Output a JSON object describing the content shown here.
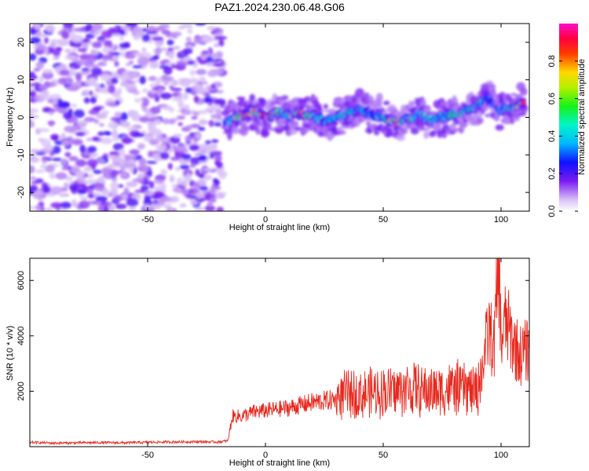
{
  "figure": {
    "title": "PAZ1.2024.230.06.48.G06"
  },
  "chart_data": [
    {
      "type": "heatmap",
      "title": "PAZ1.2024.230.06.48.G06",
      "xlabel": "Height of straight line (km)",
      "ylabel": "Frequency (Hz)",
      "xlim": [
        -100,
        112
      ],
      "ylim": [
        -25,
        25
      ],
      "xticks": [
        -50,
        0,
        50,
        100
      ],
      "yticks": [
        -20,
        -10,
        0,
        10,
        20
      ],
      "colorbar": {
        "label": "Normalized spectral amplitude",
        "range": [
          0.0,
          1.0
        ],
        "ticks": [
          "0.0",
          "0.2",
          "0.4",
          "0.6",
          "0.8"
        ],
        "colormap": "rainbow (white-violet-blue-cyan-green-yellow-red-magenta)"
      },
      "ridge": {
        "description": "dominant frequency track, strong spectral amplitude",
        "x": [
          -17,
          -10,
          -5,
          0,
          5,
          10,
          15,
          20,
          25,
          30,
          35,
          40,
          45,
          50,
          55,
          60,
          65,
          70,
          75,
          80,
          85,
          90,
          95,
          100,
          105,
          110
        ],
        "y": [
          -1.5,
          0.5,
          1.5,
          0,
          1.5,
          0.5,
          1.0,
          0.5,
          -1.0,
          0,
          1.0,
          2.0,
          1.0,
          0.0,
          -1.5,
          -0.5,
          1.0,
          -0.5,
          0,
          1.0,
          1.5,
          3.0,
          5.0,
          2.0,
          2.5,
          4.0
        ],
        "peak_amplitude": [
          0.3,
          0.9,
          0.7,
          0.9,
          0.6,
          0.5,
          0.9,
          0.6,
          0.4,
          0.4,
          0.5,
          0.4,
          0.3,
          0.5,
          0.8,
          0.5,
          0.4,
          0.5,
          0.4,
          0.6,
          0.5,
          0.5,
          0.3,
          0.4,
          0.5,
          0.9
        ]
      },
      "noise_region": {
        "x_range": [
          -100,
          -18
        ],
        "y_range": [
          -25,
          25
        ],
        "amplitude": [
          0.02,
          0.25
        ]
      }
    },
    {
      "type": "line",
      "xlabel": "Height of straight line (km)",
      "ylabel": "SNR (10 * v/v)",
      "xlim": [
        -100,
        112
      ],
      "ylim": [
        0,
        6800
      ],
      "xticks": [
        -50,
        0,
        50,
        100
      ],
      "yticks": [
        2000,
        4000,
        6000
      ],
      "series": [
        {
          "color": "#e8281e",
          "x": [
            -100,
            -90,
            -80,
            -70,
            -60,
            -50,
            -40,
            -30,
            -20,
            -16,
            -14,
            -10,
            -5,
            0,
            5,
            10,
            15,
            20,
            25,
            30,
            35,
            40,
            45,
            50,
            55,
            60,
            65,
            70,
            75,
            80,
            85,
            90,
            93,
            95,
            97,
            99,
            100,
            102,
            105,
            108,
            112
          ],
          "y": [
            150,
            120,
            130,
            140,
            130,
            150,
            160,
            170,
            160,
            200,
            1100,
            1100,
            1250,
            1300,
            1350,
            1400,
            1500,
            1600,
            1650,
            1700,
            1800,
            1800,
            1850,
            1900,
            1900,
            2000,
            1950,
            1900,
            1950,
            2000,
            2000,
            1900,
            3400,
            4200,
            3500,
            6700,
            3800,
            4500,
            3800,
            3300,
            3500
          ]
        }
      ]
    }
  ]
}
